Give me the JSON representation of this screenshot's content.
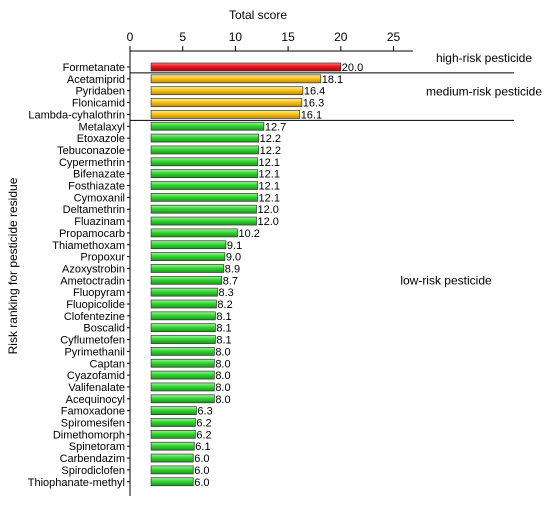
{
  "chart_data": {
    "type": "bar",
    "orientation": "horizontal",
    "xlabel": "Total score",
    "ylabel": "Risk ranking for pesticide residue",
    "xlim": [
      0,
      27
    ],
    "xticks": [
      0,
      5,
      10,
      15,
      20,
      25
    ],
    "x_axis_position": "top",
    "bar_start": 2,
    "categories": [
      "Formetanate",
      "Acetamiprid",
      "Pyridaben",
      "Flonicamid",
      "Lambda-cyhalothrin",
      "Metalaxyl",
      "Etoxazole",
      "Tebuconazole",
      "Cypermethrin",
      "Bifenazate",
      "Fosthiazate",
      "Cymoxanil",
      "Deltamethrin",
      "Fluazinam",
      "Propamocarb",
      "Thiamethoxam",
      "Propoxur",
      "Azoxystrobin",
      "Ametoctradin",
      "Fluopyram",
      "Fluopicolide",
      "Clofentezine",
      "Boscalid",
      "Cyflumetofen",
      "Pyrimethanil",
      "Captan",
      "Cyazofamid",
      "Valifenalate",
      "Acequinocyl",
      "Famoxadone",
      "Spiromesifen",
      "Dimethomorph",
      "Spinetoram",
      "Carbendazim",
      "Spirodiclofen",
      "Thiophanate-methyl"
    ],
    "values": [
      20.0,
      18.1,
      16.4,
      16.3,
      16.1,
      12.7,
      12.2,
      12.2,
      12.1,
      12.1,
      12.1,
      12.1,
      12.0,
      12.0,
      10.2,
      9.1,
      9.0,
      8.9,
      8.7,
      8.3,
      8.2,
      8.1,
      8.1,
      8.1,
      8.0,
      8.0,
      8.0,
      8.0,
      8.0,
      6.3,
      6.2,
      6.2,
      6.1,
      6.0,
      6.0,
      6.0
    ],
    "value_labels": [
      "20.0",
      "18.1",
      "16.4",
      "16.3",
      "16.1",
      "12.7",
      "12.2",
      "12.2",
      "12.1",
      "12.1",
      "12.1",
      "12.1",
      "12.0",
      "12.0",
      "10.2",
      "9.1",
      "9.0",
      "8.9",
      "8.7",
      "8.3",
      "8.2",
      "8.1",
      "8.1",
      "8.1",
      "8.0",
      "8.0",
      "8.0",
      "8.0",
      "8.0",
      "6.3",
      "6.2",
      "6.2",
      "6.1",
      "6.0",
      "6.0",
      "6.0"
    ],
    "groups": [
      {
        "label": "high-risk pesticide",
        "start": 0,
        "end": 0,
        "color": "#e8141c"
      },
      {
        "label": "medium-risk pesticide",
        "start": 1,
        "end": 4,
        "color": "#f5c518"
      },
      {
        "label": "low-risk pesticide",
        "start": 5,
        "end": 35,
        "color": "#33d633"
      }
    ],
    "grid": false
  }
}
